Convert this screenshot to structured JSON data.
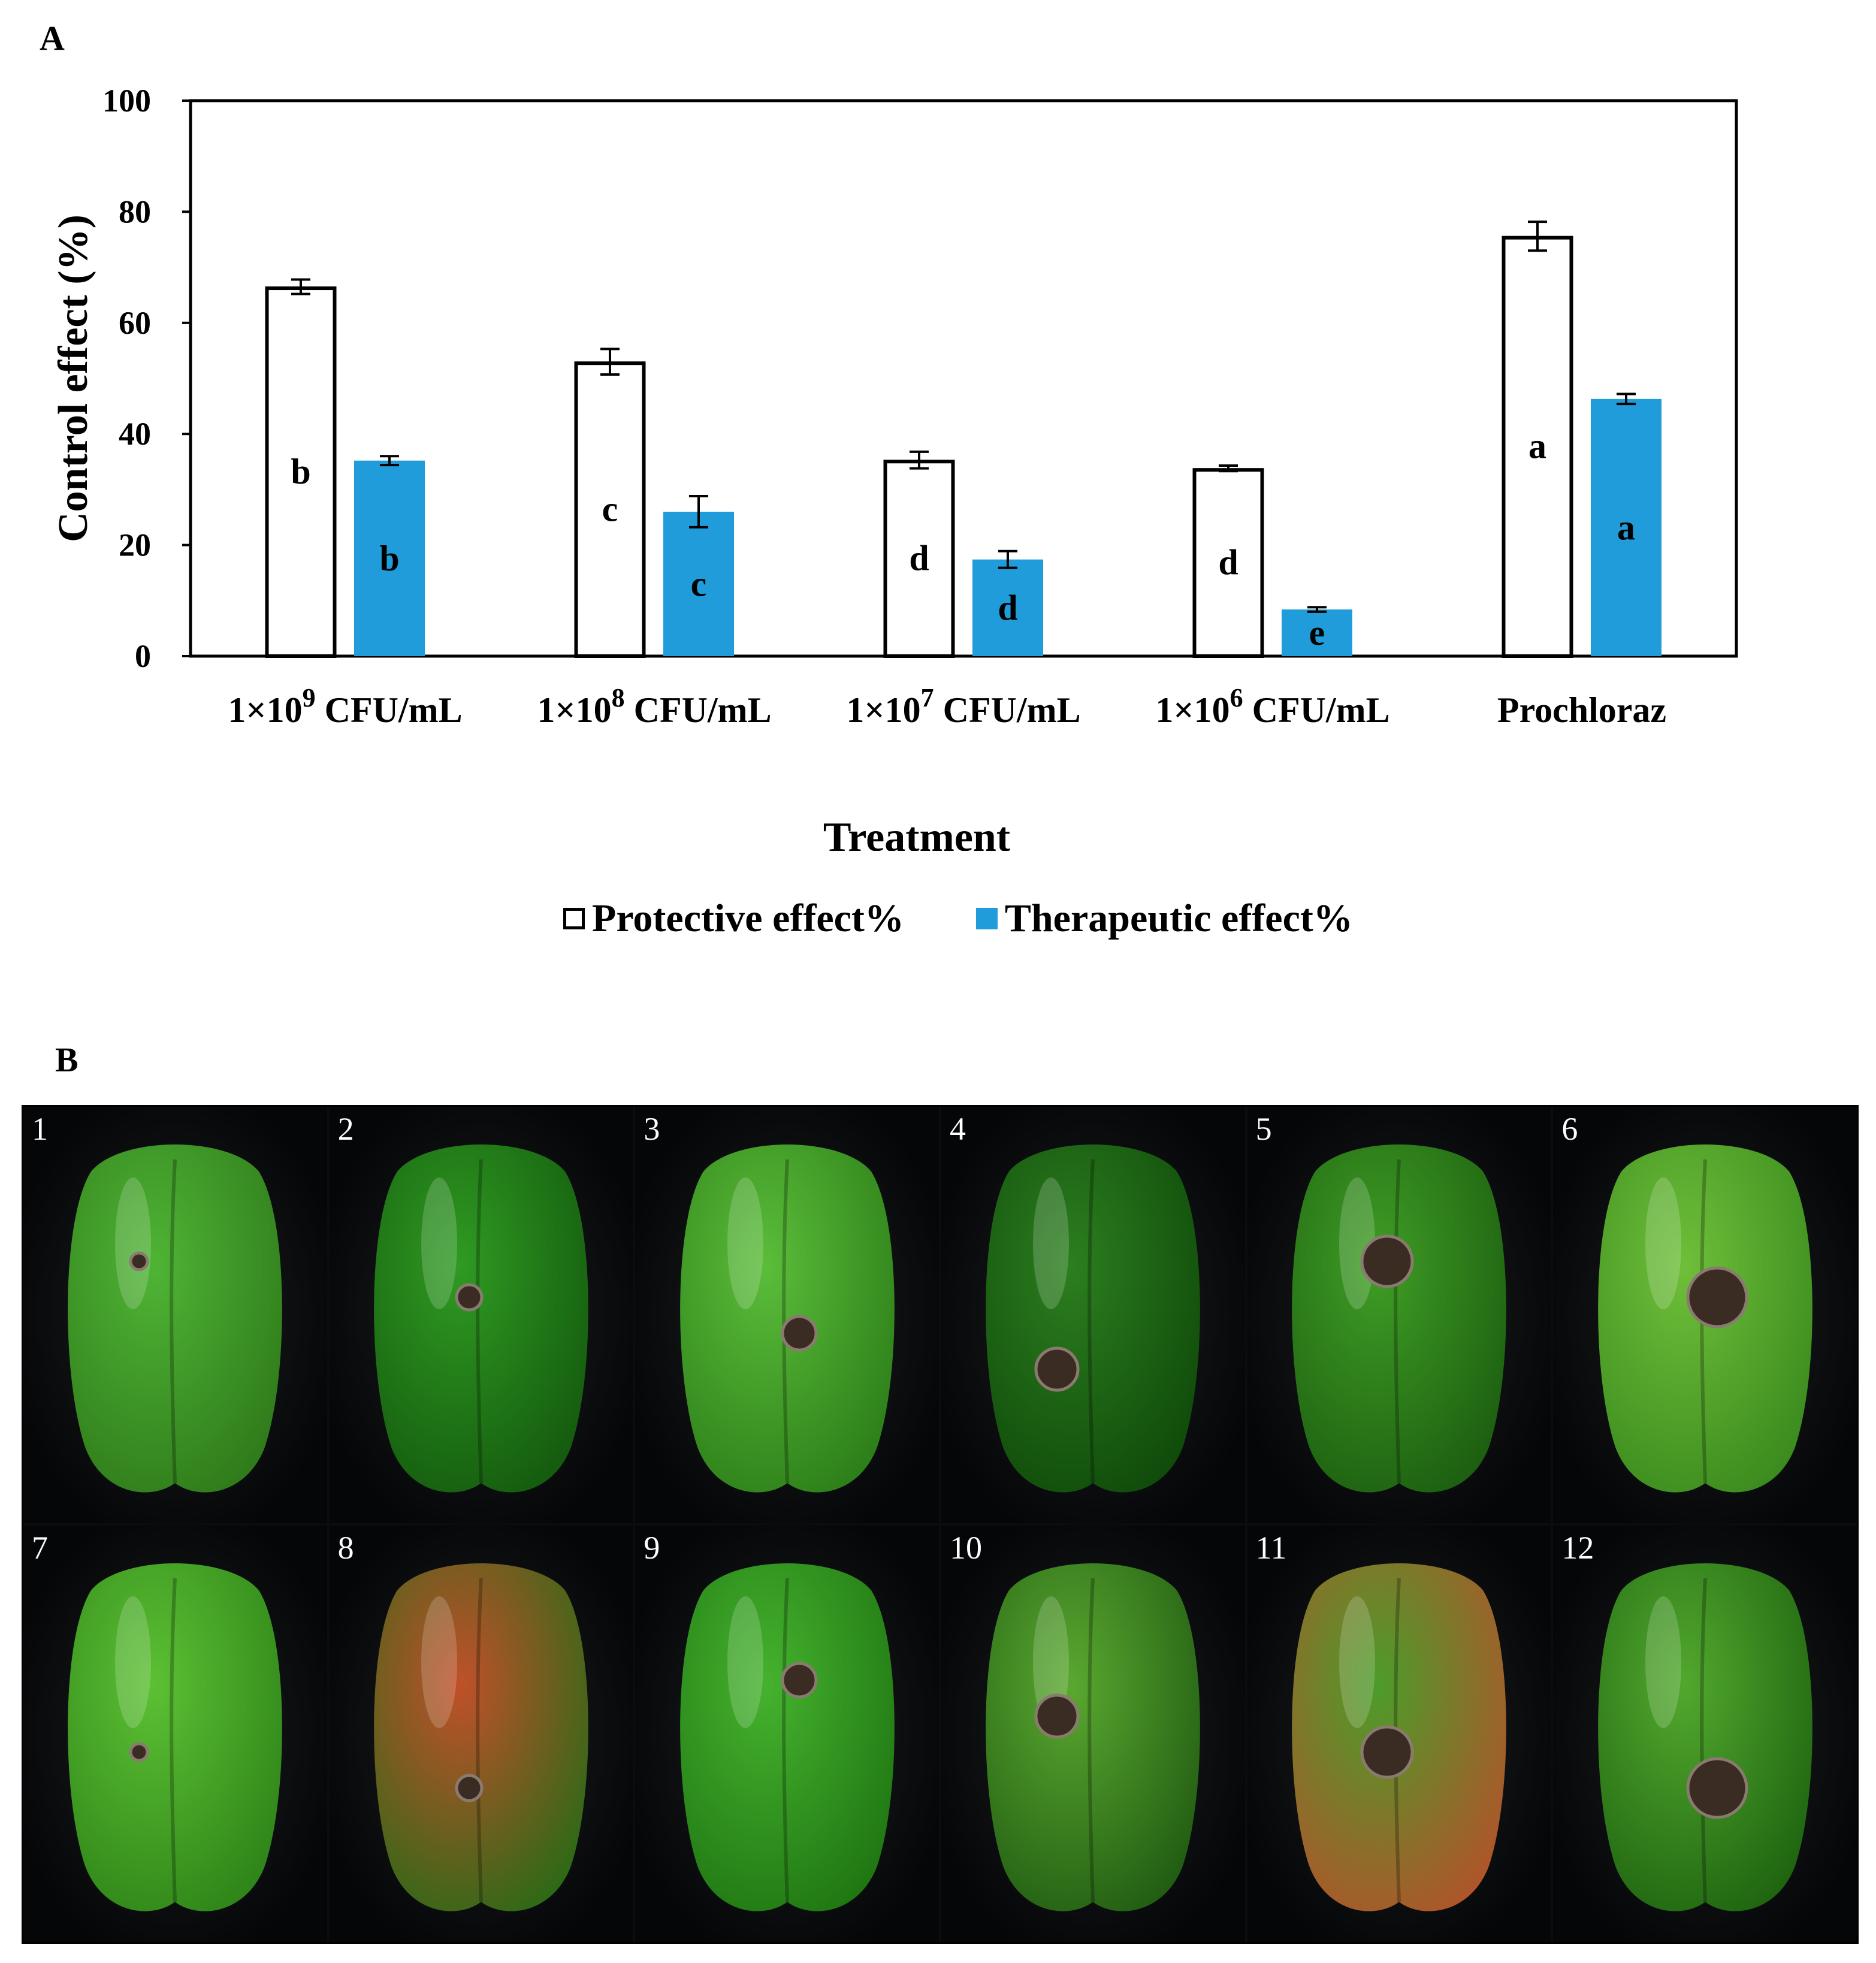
{
  "panel_a_label": "A",
  "panel_b_label": "B",
  "chart_data": {
    "type": "bar",
    "categories": [
      {
        "base": "1×10",
        "exp": "9",
        "unit": "CFU/mL"
      },
      {
        "base": "1×10",
        "exp": "8",
        "unit": "CFU/mL"
      },
      {
        "base": "1×10",
        "exp": "7",
        "unit": "CFU/mL"
      },
      {
        "base": "1×10",
        "exp": "6",
        "unit": "CFU/mL"
      },
      {
        "base": "Prochloraz",
        "exp": "",
        "unit": ""
      }
    ],
    "series": [
      {
        "name": "Protective effect%",
        "fill": "#ffffff",
        "stroke": "#000000",
        "values": [
          66.5,
          53.0,
          35.3,
          33.8,
          75.6
        ],
        "errors": [
          1.3,
          2.3,
          1.5,
          0.5,
          2.6
        ],
        "letters": [
          "b",
          "c",
          "d",
          "d",
          "a"
        ]
      },
      {
        "name": "Therapeutic effect%",
        "fill": "#1f9cd9",
        "stroke": "#1f9cd9",
        "values": [
          35.2,
          26.0,
          17.4,
          8.4,
          46.3
        ],
        "errors": [
          0.8,
          2.8,
          1.5,
          0.4,
          0.9
        ],
        "letters": [
          "b",
          "c",
          "d",
          "e",
          "a"
        ]
      }
    ],
    "xlabel": "Treatment",
    "ylabel": "Control effect  (%)",
    "ylim": [
      0,
      100
    ],
    "yticks": [
      0,
      20,
      40,
      60,
      80,
      100
    ],
    "grid": false,
    "legend_position": "bottom"
  },
  "photos": [
    {
      "number": "1"
    },
    {
      "number": "2"
    },
    {
      "number": "3"
    },
    {
      "number": "4"
    },
    {
      "number": "5"
    },
    {
      "number": "6"
    },
    {
      "number": "7"
    },
    {
      "number": "8"
    },
    {
      "number": "9"
    },
    {
      "number": "10"
    },
    {
      "number": "11"
    },
    {
      "number": "12"
    }
  ]
}
